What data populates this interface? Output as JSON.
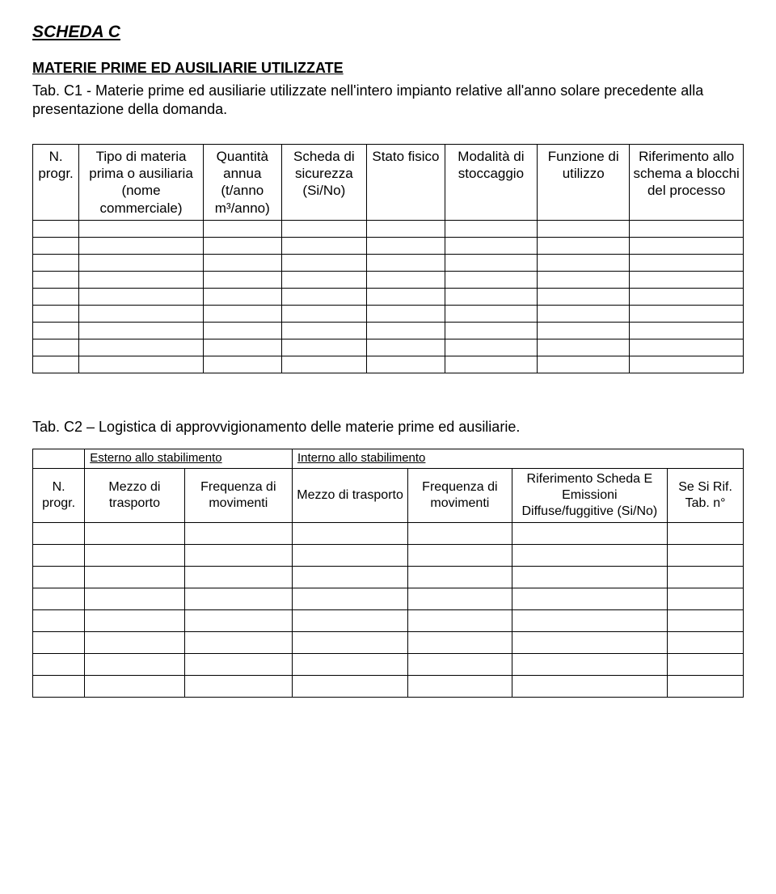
{
  "title": "SCHEDA C",
  "subtitle": "MATERIE PRIME ED AUSILIARIE UTILIZZATE",
  "desc_prefix": "Tab. C1 - ",
  "desc_rest": "Materie prime ed ausiliarie utilizzate nell'intero impianto relative all'anno solare precedente alla presentazione della domanda.",
  "t1": {
    "headers": {
      "c1": "N. progr.",
      "c2": "Tipo di materia prima o ausiliaria (nome commerciale)",
      "c3": "Quantità annua (t/anno m³/anno)",
      "c4": "Scheda di sicurezza (Si/No)",
      "c5": "Stato fisico",
      "c6": "Modalità di stoccaggio",
      "c7": "Funzione di utilizzo",
      "c8": "Riferimento allo schema a blocchi del processo"
    },
    "empty_rows": 9
  },
  "caption2": "Tab. C2 – Logistica di approvvigionamento delle materie prime ed ausiliarie.",
  "t2": {
    "group_a": "Esterno allo stabilimento",
    "group_b": "Interno allo stabilimento",
    "headers": {
      "c1": "N. progr.",
      "c2": "Mezzo di trasporto",
      "c3": "Frequenza di movimenti",
      "c4": "Mezzo di trasporto",
      "c5": "Frequenza di movimenti",
      "c6": "Riferimento Scheda E Emissioni Diffuse/fuggitive (Si/No)",
      "c7": "Se Si Rif. Tab. n°"
    },
    "empty_rows": 8
  }
}
